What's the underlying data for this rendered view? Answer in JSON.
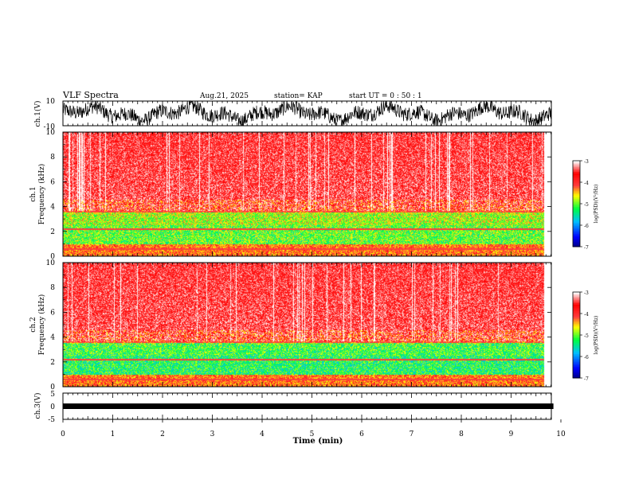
{
  "header": {
    "title": "VLF Spectra",
    "date": "Aug.21, 2025",
    "station": "station= KAP",
    "start": "start  UT =   0 : 50 : 1"
  },
  "chart_data": [
    {
      "id": "ch1-waveform",
      "type": "line",
      "ylabel": "ch.1(V)",
      "ylim": [
        -10,
        10
      ],
      "yticks": [
        "10",
        "-10"
      ],
      "xlim": [
        0,
        10
      ]
    },
    {
      "id": "ch1-spectrogram",
      "type": "heatmap",
      "ylabel_line1": "ch.1",
      "ylabel_line2": "Frequency  (kHz)",
      "ylim": [
        0,
        10
      ],
      "yticks": [
        "0",
        "2",
        "4",
        "6",
        "8",
        "10"
      ],
      "xlim": [
        0,
        10
      ],
      "colorbar": {
        "label": "log(PSD)(V²/Hz)",
        "range": [
          -7,
          -3
        ],
        "ticks": [
          "-3",
          "-4",
          "-5",
          "-6",
          "-7"
        ]
      }
    },
    {
      "id": "ch2-spectrogram",
      "type": "heatmap",
      "ylabel_line1": "ch.2",
      "ylabel_line2": "Frequency  (kHz)",
      "ylim": [
        0,
        10
      ],
      "yticks": [
        "0",
        "2",
        "4",
        "6",
        "8",
        "10"
      ],
      "xlim": [
        0,
        10
      ],
      "colorbar": {
        "label": "log(PSD)(V²/Hz)",
        "range": [
          -7,
          -3
        ],
        "ticks": [
          "-3",
          "-4",
          "-5",
          "-6",
          "-7"
        ]
      }
    },
    {
      "id": "ch3-waveform",
      "type": "line",
      "ylabel": "ch.3(V)",
      "ylim": [
        -5,
        5
      ],
      "yticks": [
        "5",
        "0",
        "-5"
      ],
      "xlim": [
        0,
        10
      ],
      "xlabel": "Time  (min)",
      "xticks": [
        "0",
        "1",
        "2",
        "3",
        "4",
        "5",
        "6",
        "7",
        "8",
        "9",
        "10"
      ],
      "data_end_min": 9.85
    }
  ],
  "colors": {
    "background": "#ffffff",
    "waveform": "#000000",
    "colormap": [
      "#000080",
      "#0000ff",
      "#00c0ff",
      "#00ff40",
      "#ffff00",
      "#ff4040",
      "#ff0000",
      "#ffffff"
    ]
  }
}
